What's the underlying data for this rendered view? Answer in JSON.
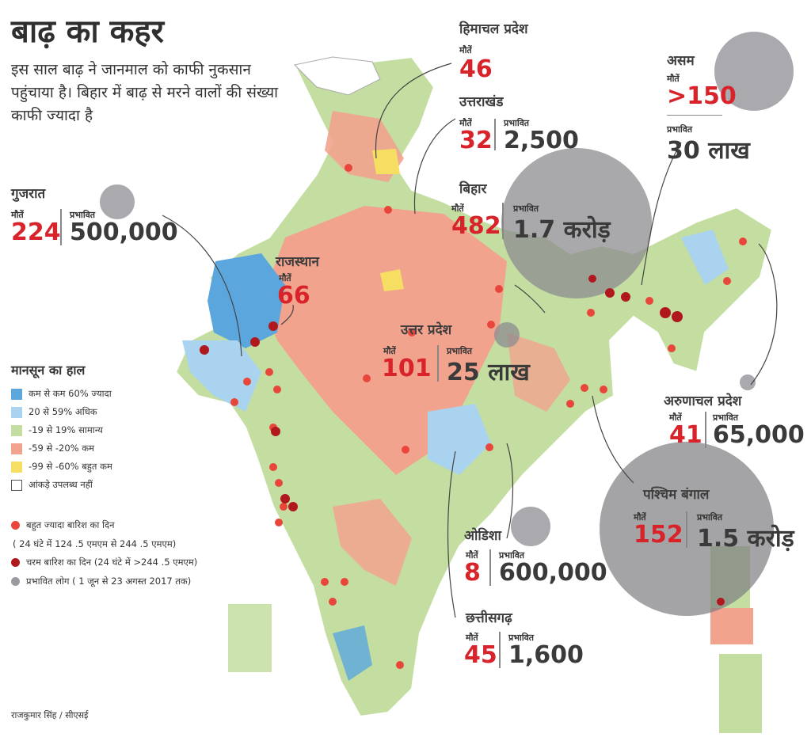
{
  "title": "बाढ़ का कहर",
  "subtitle": "इस साल बाढ़ ने जानमाल को काफी नुकसान पहुंचाया है। बिहार में बाढ़ से मरने वालों की संख्या काफी ज्यादा है",
  "deaths_label": "मौतें",
  "affected_label": "प्रभावित",
  "states": {
    "himachal": {
      "name": "हिमाचल प्रदेश",
      "deaths": "46"
    },
    "uttarakhand": {
      "name": "उत्तराखंड",
      "deaths": "32",
      "affected": "2,500"
    },
    "bihar": {
      "name": "बिहार",
      "deaths": "482",
      "affected": "1.7 करोड़"
    },
    "assam": {
      "name": "असम",
      "deaths": ">150",
      "affected": "30 लाख"
    },
    "gujarat": {
      "name": "गुजरात",
      "deaths": "224",
      "affected": "500,000"
    },
    "rajasthan": {
      "name": "राजस्थान",
      "deaths": "66"
    },
    "up": {
      "name": "उत्तर प्रदेश",
      "deaths": "101",
      "affected": "25 लाख"
    },
    "arunachal": {
      "name": "अरुणाचल प्रदेश",
      "deaths": "41",
      "affected": "65,000"
    },
    "wb": {
      "name": "पश्चिम बंगाल",
      "deaths": "152",
      "affected": "1.5 करोड़"
    },
    "odisha": {
      "name": "ओडिशा",
      "deaths": "8",
      "affected": "600,000"
    },
    "chhattisgarh": {
      "name": "छत्तीसगढ़",
      "deaths": "45",
      "affected": "1,600"
    }
  },
  "legend": {
    "title": "मानसून का हाल",
    "items": [
      {
        "label": "कम से कम 60% ज्यादा",
        "color": "#5aa6dd"
      },
      {
        "label": "20 से 59% अधिक",
        "color": "#a9d3ef"
      },
      {
        "label": "-19 से 19% सामान्य",
        "color": "#c3dea0"
      },
      {
        "label": "-59 से -20% कम",
        "color": "#f2a38e"
      },
      {
        "label": "-99 से -60% बहुत कम",
        "color": "#f6de63"
      },
      {
        "label": "आंकड़े उपलब्ध नहीं",
        "color": "#ffffff"
      }
    ],
    "heavy_rain": "बहुत ज्यादा बारिश का दिन",
    "heavy_rain_note": "( 24 घंटे में 124 .5 एमएम से 244 .5 एमएम)",
    "extreme_rain": "चरम बारिश का दिन (24 घंटे में >244 .5 एमएम)",
    "affected_people": "प्रभावित लोग ( 1 जून से 23 अगस्त 2017 तक)",
    "heavy_color": "#e8463a",
    "extreme_color": "#b0181d",
    "affected_color": "#9a9aa0"
  },
  "credit": "राजकुमार सिंह / सीएसई"
}
